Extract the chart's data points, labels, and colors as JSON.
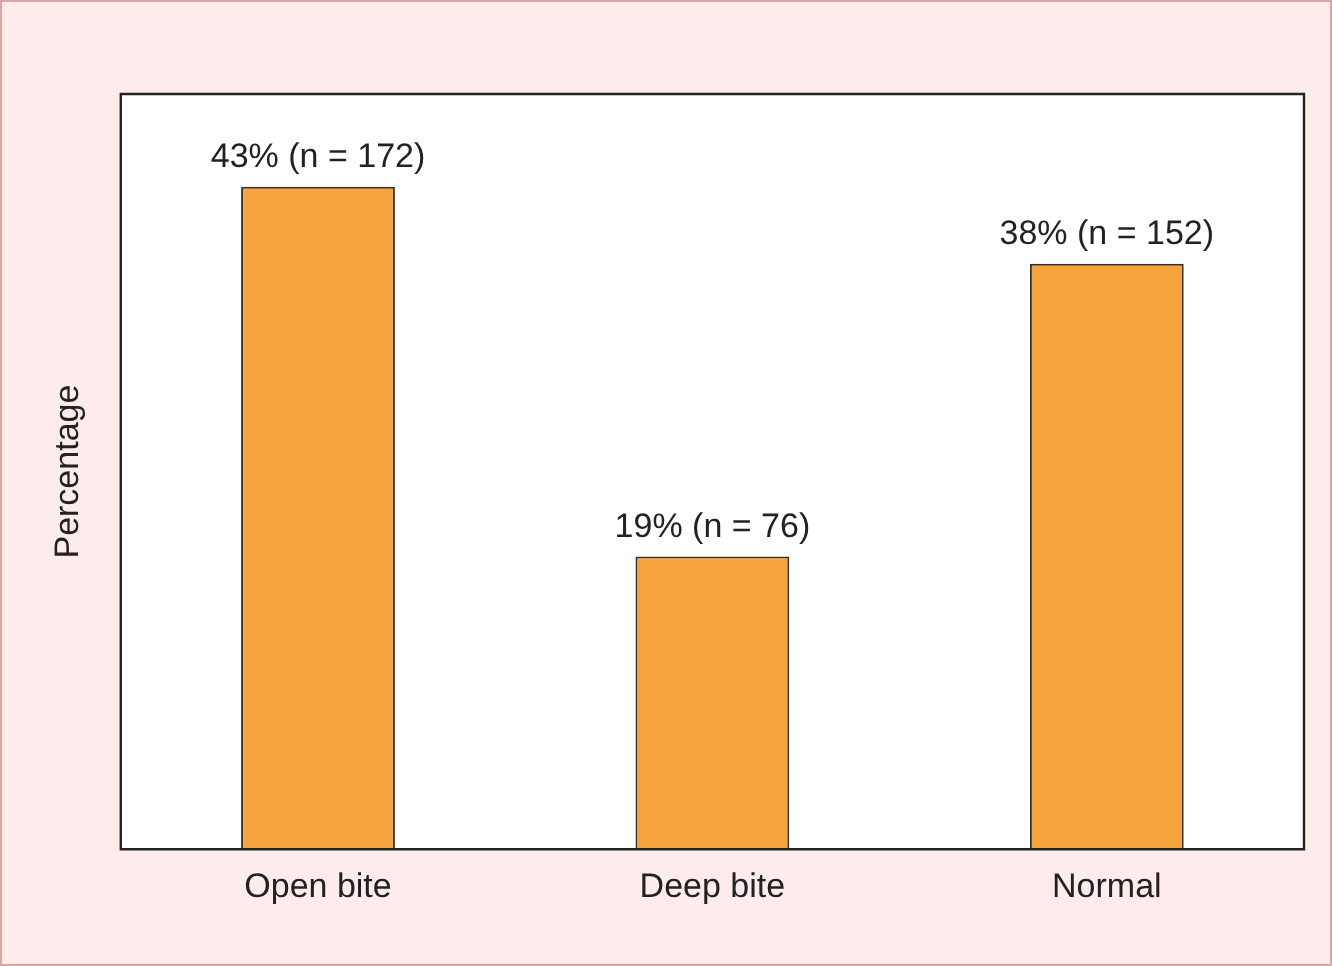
{
  "chart_data": {
    "type": "bar",
    "ylabel": "Percentage",
    "categories": [
      "Open bite",
      "Deep bite",
      "Normal"
    ],
    "values": [
      43,
      19,
      38
    ],
    "value_labels": [
      "43% (n = 172)",
      "19% (n = 76)",
      "38% (n = 152)"
    ],
    "color": "#f6a53c",
    "grid": false,
    "legend": false
  }
}
